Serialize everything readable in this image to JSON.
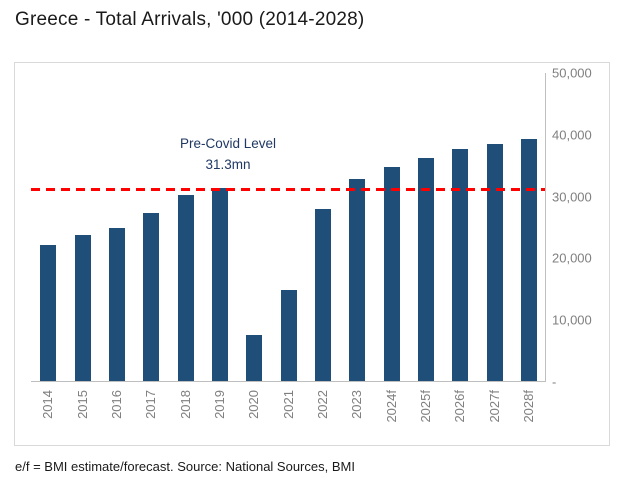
{
  "title": "Greece - Total Arrivals, '000 (2014-2028)",
  "footer": "e/f = BMI estimate/forecast. Source: National Sources, BMI",
  "colors": {
    "bar": "#1F4E79",
    "reference_line": "#FF0000",
    "axis_text": "#7F7F7F",
    "annotation_text": "#1F3864",
    "chart_border": "#D9D9D9"
  },
  "chart_data": {
    "type": "bar",
    "title": "Greece - Total Arrivals, '000 (2014-2028)",
    "xlabel": "",
    "ylabel": "",
    "categories": [
      "2014",
      "2015",
      "2016",
      "2017",
      "2018",
      "2019",
      "2020",
      "2021",
      "2022",
      "2023",
      "2024f",
      "2025f",
      "2026f",
      "2027f",
      "2028f"
    ],
    "values": [
      22000,
      23600,
      24800,
      27200,
      30100,
      31300,
      7400,
      14700,
      27800,
      32700,
      34700,
      36100,
      37500,
      38300,
      39100
    ],
    "ylim": [
      0,
      50000
    ],
    "y_ticks": [
      {
        "value": 50000,
        "label": "50,000"
      },
      {
        "value": 40000,
        "label": "40,000"
      },
      {
        "value": 30000,
        "label": "30,000"
      },
      {
        "value": 20000,
        "label": "20,000"
      },
      {
        "value": 10000,
        "label": "10,000"
      },
      {
        "value": 0,
        "label": "-"
      }
    ],
    "grid": false,
    "legend": "none",
    "y_axis_position": "right",
    "reference_line": {
      "value": 31300,
      "label_line1": "Pre-Covid Level",
      "label_line2": "31.3mn",
      "color": "#FF0000",
      "style": "dashed"
    }
  }
}
